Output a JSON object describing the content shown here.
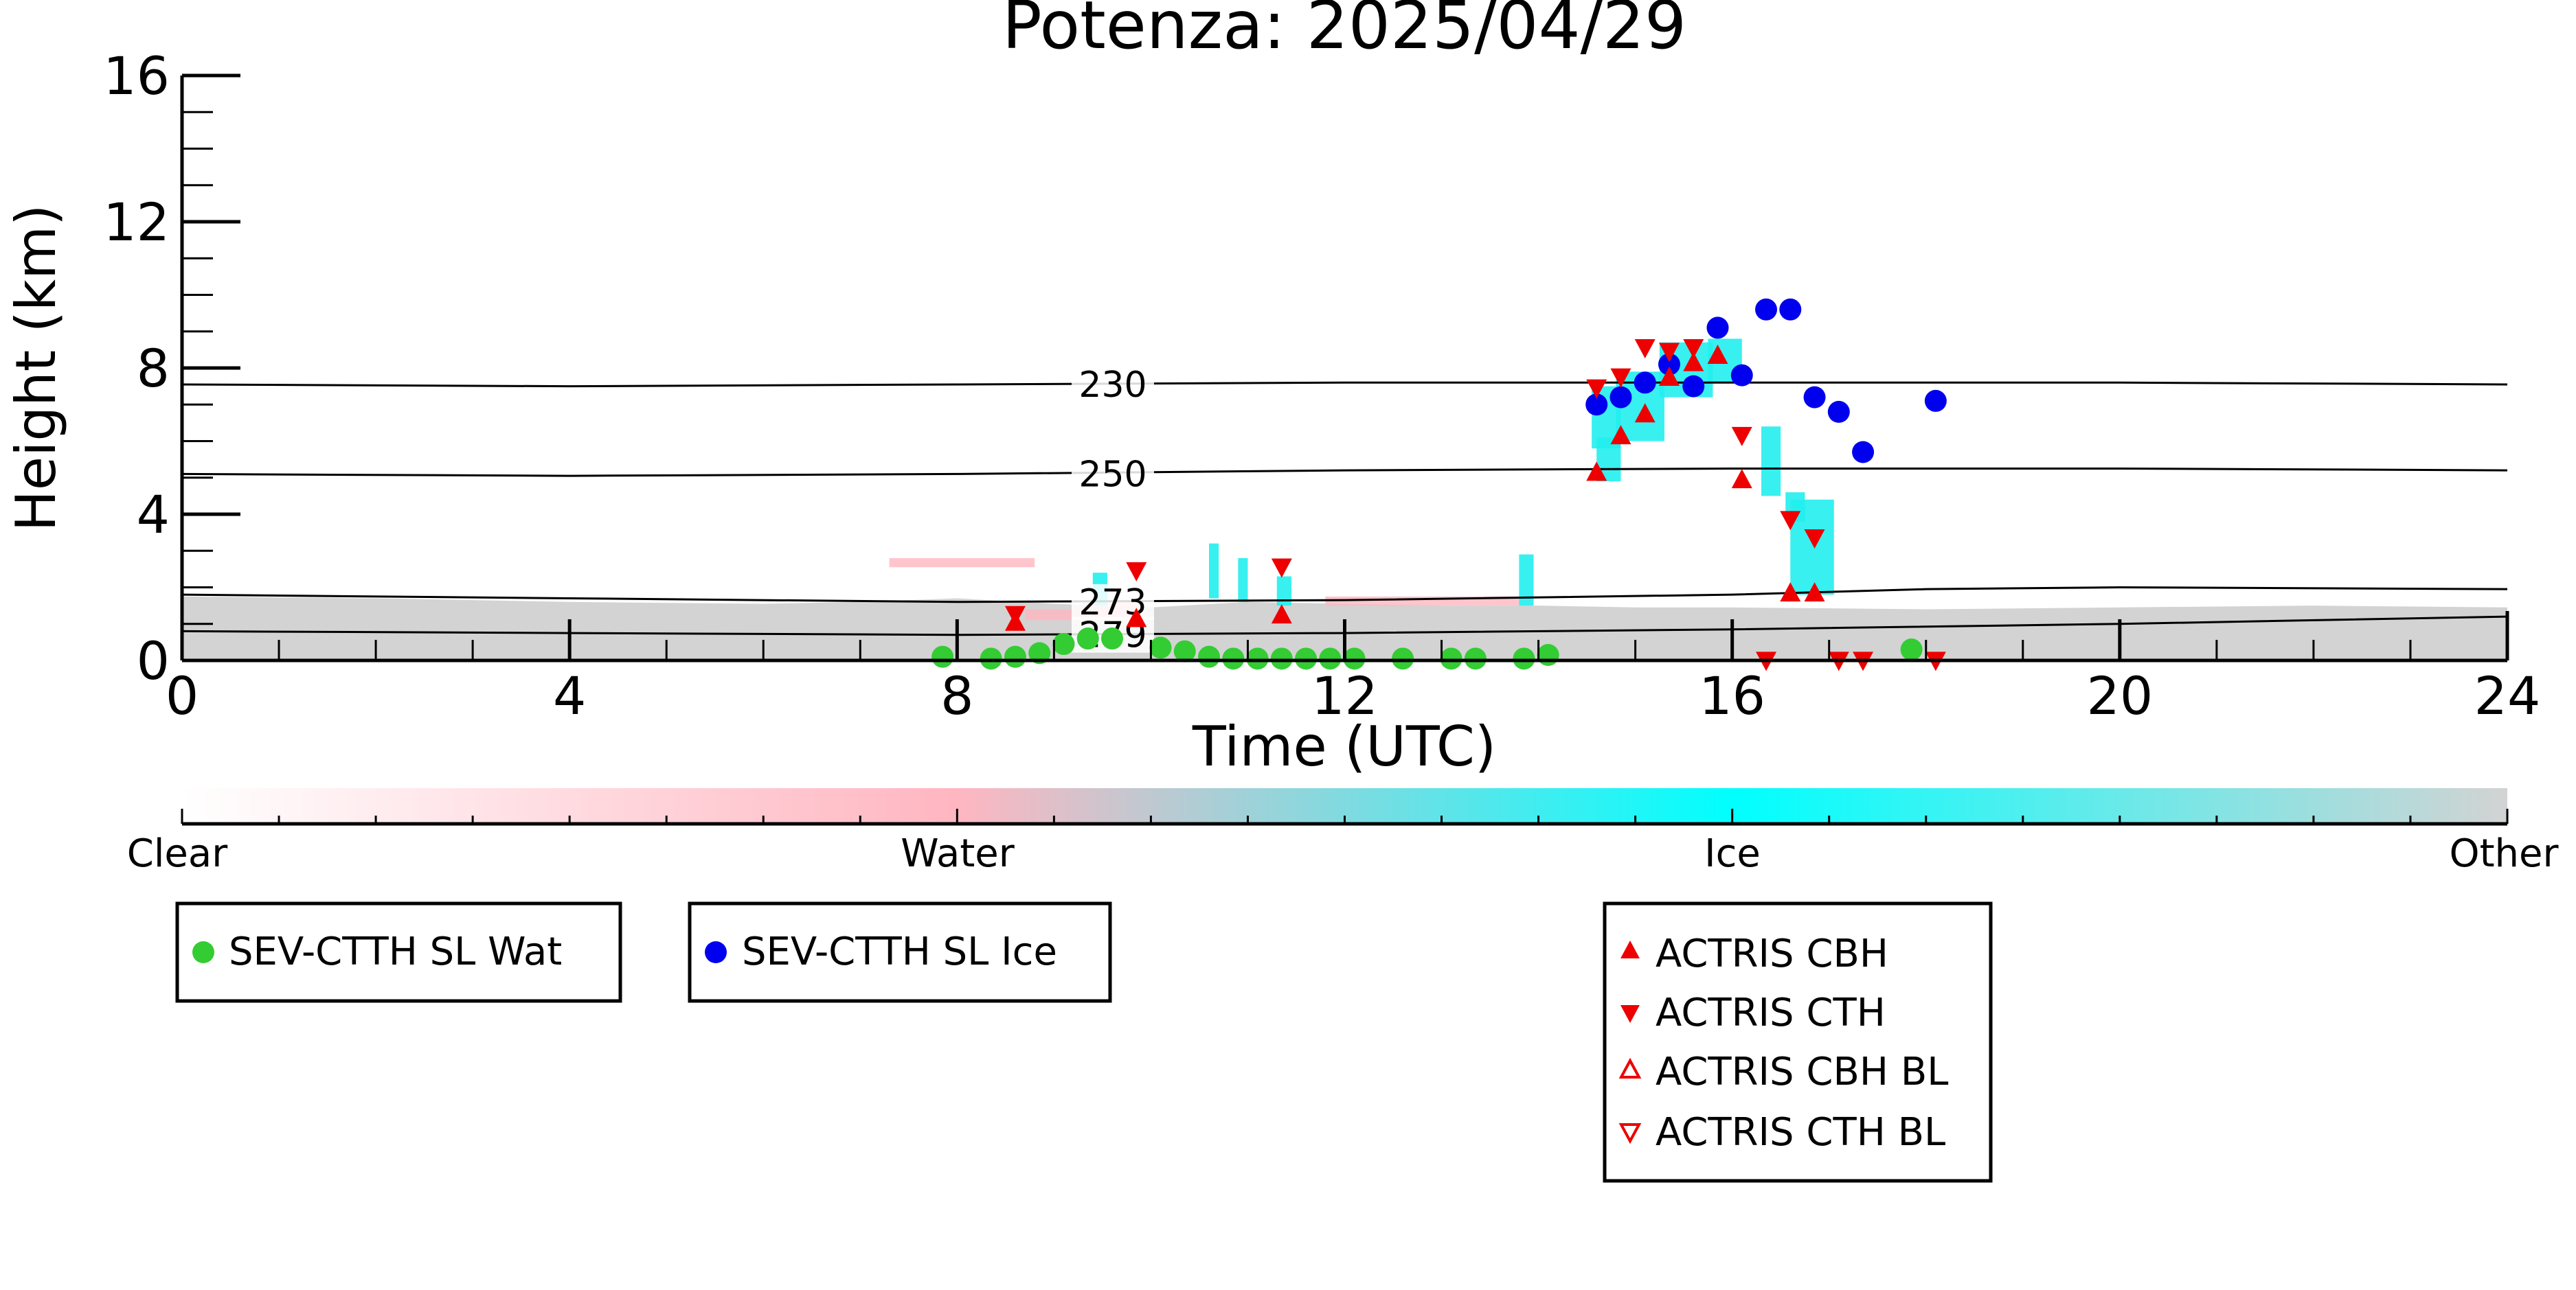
{
  "chart_data": {
    "type": "scatter",
    "title": "Potenza: 2025/04/29",
    "xlabel": "Time (UTC)",
    "ylabel": "Height (km)",
    "xlim": [
      0,
      24
    ],
    "ylim": [
      0,
      16
    ],
    "x_ticks": [
      "0",
      "4",
      "8",
      "12",
      "16",
      "20",
      "24"
    ],
    "y_ticks": [
      "0",
      "4",
      "8",
      "12",
      "16"
    ],
    "colorbar": {
      "labels": [
        "Clear",
        "Water",
        "Ice",
        "Other"
      ],
      "colors": [
        "#ffffff",
        "#ffb6c1",
        "#00ffff",
        "#d3d3d3"
      ]
    },
    "isotherms": [
      {
        "label": "230",
        "x": [
          0,
          4,
          8,
          12,
          16,
          20,
          24
        ],
        "y": [
          7.55,
          7.5,
          7.55,
          7.6,
          7.6,
          7.6,
          7.55
        ]
      },
      {
        "label": "250",
        "x": [
          0,
          4,
          8,
          12,
          16,
          20,
          24
        ],
        "y": [
          5.1,
          5.05,
          5.1,
          5.2,
          5.25,
          5.25,
          5.2
        ]
      },
      {
        "label": "273",
        "x": [
          0,
          4,
          8,
          12,
          16,
          18,
          20,
          24
        ],
        "y": [
          1.8,
          1.7,
          1.6,
          1.65,
          1.8,
          1.95,
          2.0,
          1.95
        ]
      },
      {
        "label": "279",
        "x": [
          0,
          4,
          8,
          12,
          16,
          20,
          24
        ],
        "y": [
          0.8,
          0.75,
          0.7,
          0.75,
          0.85,
          1.0,
          1.2
        ]
      }
    ],
    "series": [
      {
        "name": "SEV-CTTH SL Wat",
        "color": "#33cc33",
        "marker": "circle",
        "x": [
          7.85,
          8.35,
          8.6,
          8.85,
          9.1,
          9.35,
          9.6,
          10.1,
          10.35,
          10.6,
          10.85,
          11.1,
          11.35,
          11.6,
          11.85,
          12.1,
          12.6,
          13.1,
          13.35,
          13.85,
          14.1,
          17.85
        ],
        "y": [
          0.1,
          0.05,
          0.1,
          0.2,
          0.45,
          0.6,
          0.6,
          0.35,
          0.25,
          0.1,
          0.05,
          0.05,
          0.05,
          0.05,
          0.05,
          0.05,
          0.05,
          0.05,
          0.05,
          0.05,
          0.15,
          0.3
        ]
      },
      {
        "name": "SEV-CTTH SL Ice",
        "color": "#0000ee",
        "marker": "circle",
        "x": [
          14.6,
          14.85,
          15.1,
          15.35,
          15.6,
          15.85,
          16.1,
          16.35,
          16.6,
          16.85,
          17.1,
          17.35,
          18.1
        ],
        "y": [
          7.0,
          7.2,
          7.6,
          8.1,
          7.5,
          9.1,
          7.8,
          9.6,
          9.6,
          7.2,
          6.8,
          5.7,
          7.1
        ]
      },
      {
        "name": "ACTRIS CBH",
        "color": "#ee0000",
        "marker": "triangle-up",
        "x": [
          8.6,
          9.85,
          11.35,
          14.6,
          14.85,
          15.1,
          15.35,
          15.6,
          15.85,
          16.1,
          16.6,
          16.85
        ],
        "y": [
          1.0,
          1.1,
          1.2,
          5.1,
          6.1,
          6.7,
          7.7,
          8.1,
          8.3,
          4.9,
          1.8,
          1.8
        ]
      },
      {
        "name": "ACTRIS CTH",
        "color": "#ee0000",
        "marker": "triangle-down",
        "x": [
          8.6,
          9.85,
          11.35,
          14.6,
          14.85,
          15.1,
          15.35,
          15.6,
          16.1,
          16.35,
          16.6,
          16.85,
          17.1,
          17.35,
          18.1
        ],
        "y": [
          1.3,
          2.5,
          2.6,
          7.5,
          7.8,
          8.6,
          8.5,
          8.6,
          6.2,
          0.05,
          3.9,
          3.4,
          0.05,
          0.05,
          0.05
        ]
      },
      {
        "name": "ACTRIS CBH BL",
        "color": "#ee0000",
        "marker": "triangle-up-open",
        "x": [],
        "y": []
      },
      {
        "name": "ACTRIS CTH BL",
        "color": "#ee0000",
        "marker": "triangle-down-open",
        "x": [],
        "y": []
      }
    ]
  }
}
